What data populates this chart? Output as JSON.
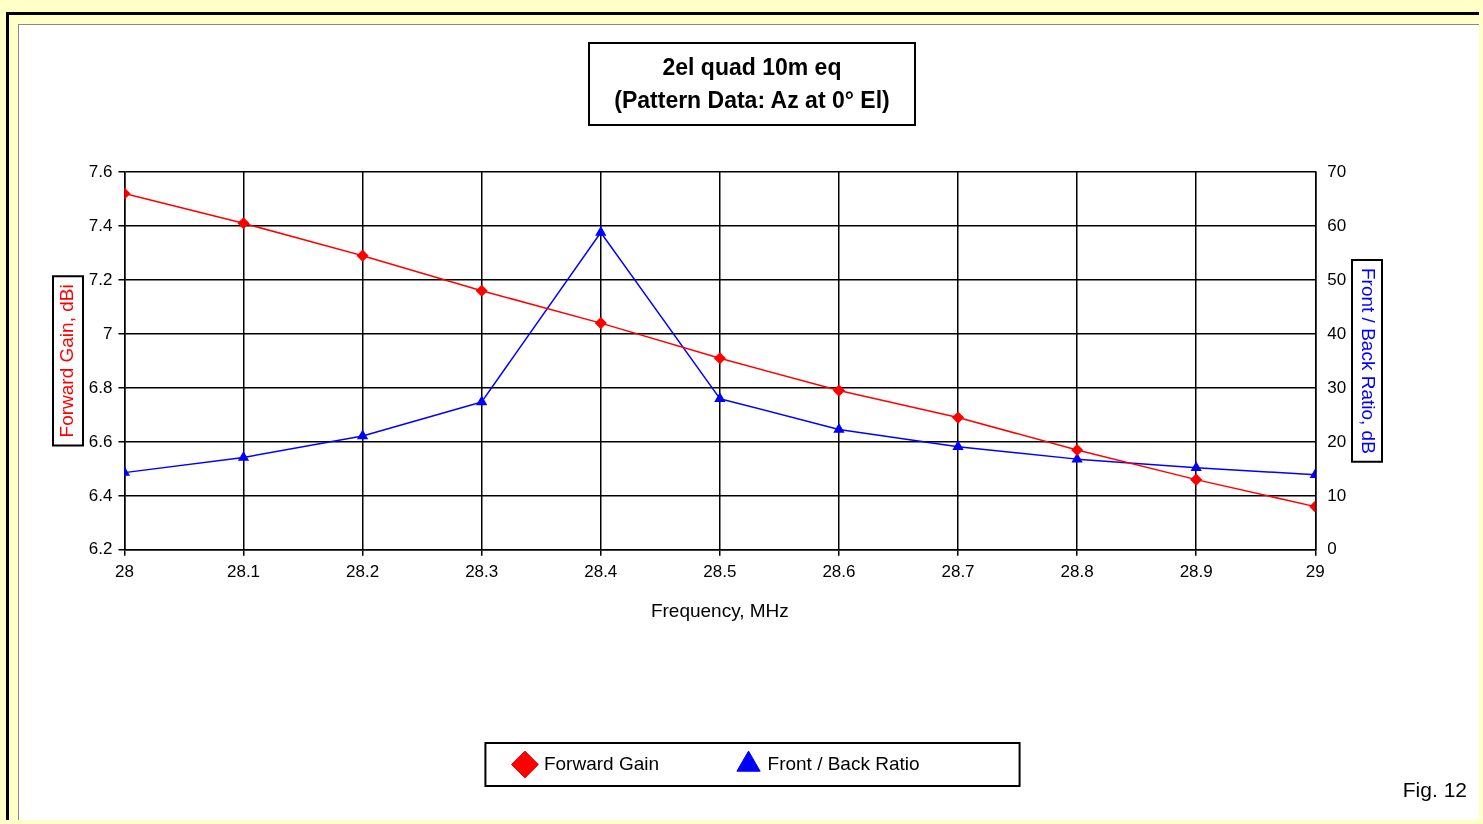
{
  "chart_data": {
    "type": "line",
    "title": "2el quad 10m eq\n(Pattern Data: Az at 0° El)",
    "xlabel": "Frequency, MHz",
    "ylabel": "Forward Gain, dBi",
    "y2label": "Front / Back Ratio, dB",
    "x": [
      28,
      28.1,
      28.2,
      28.3,
      28.4,
      28.5,
      28.6,
      28.7,
      28.8,
      28.9,
      29
    ],
    "series": [
      {
        "name": "Forward Gain",
        "color": "#ff0000",
        "marker": "diamond",
        "values": [
          7.52,
          7.41,
          7.29,
          7.16,
          7.04,
          6.91,
          6.79,
          6.69,
          6.57,
          6.46,
          6.36
        ]
      },
      {
        "name": "Front / Back Ratio",
        "color": "#0000ff",
        "marker": "triangle",
        "axis": "y2",
        "values": [
          14.3,
          17.1,
          21.1,
          27.4,
          58.8,
          28.0,
          22.3,
          19.1,
          16.8,
          15.2,
          13.9
        ]
      }
    ],
    "xlim": [
      28,
      29
    ],
    "xticks": [
      28,
      28.1,
      28.2,
      28.3,
      28.4,
      28.5,
      28.6,
      28.7,
      28.8,
      28.9,
      29
    ],
    "ylim": [
      6.2,
      7.6
    ],
    "yticks": [
      6.2,
      6.4,
      6.6,
      6.8,
      7,
      7.2,
      7.4,
      7.6
    ],
    "y2lim": [
      0,
      70
    ],
    "y2ticks": [
      0,
      10,
      20,
      30,
      40,
      50,
      60,
      70
    ],
    "grid": true,
    "legend": "bottom",
    "line_style": "solid",
    "annotations": [
      "Fig. 12"
    ]
  }
}
